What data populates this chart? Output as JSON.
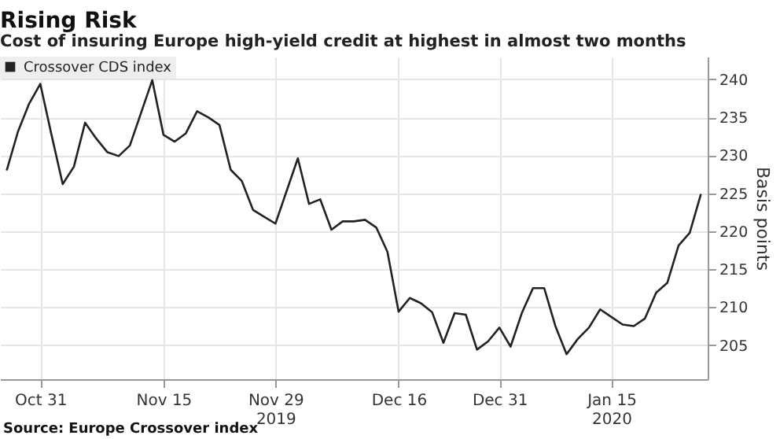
{
  "chart_data": {
    "type": "line",
    "title": "Rising Risk",
    "subtitle": "Cost of insuring Europe high-yield credit at highest in almost two months",
    "ylabel": "Basis points",
    "annotations": [
      "Source: Europe Crossover index"
    ],
    "categories": [
      null,
      null,
      null,
      "Oct 31",
      null,
      null,
      null,
      null,
      null,
      null,
      null,
      null,
      null,
      null,
      "Nov 15",
      null,
      null,
      null,
      null,
      null,
      null,
      null,
      null,
      null,
      "Nov 29\n2019",
      null,
      null,
      null,
      null,
      null,
      null,
      null,
      null,
      null,
      null,
      "Dec 16",
      null,
      null,
      null,
      null,
      null,
      null,
      null,
      null,
      "Dec 31",
      null,
      null,
      null,
      null,
      null,
      null,
      null,
      null,
      null,
      "Jan 15\n2020",
      null,
      null,
      null,
      null,
      null,
      null,
      null,
      null
    ],
    "series": [
      {
        "name": "Crossover CDS index",
        "color": "#222222",
        "values": [
          228.0,
          233.1,
          236.8,
          239.4,
          232.7,
          226.2,
          228.5,
          234.3,
          232.2,
          230.4,
          229.9,
          231.3,
          235.6,
          239.9,
          232.7,
          231.8,
          232.9,
          235.8,
          235.0,
          234.0,
          228.1,
          226.6,
          222.8,
          221.9,
          221.0,
          225.3,
          229.6,
          223.6,
          224.2,
          220.2,
          221.3,
          221.3,
          221.5,
          220.5,
          217.3,
          209.4,
          211.2,
          210.5,
          209.3,
          205.3,
          209.2,
          209.0,
          204.4,
          205.5,
          207.3,
          204.8,
          209.2,
          212.5,
          212.5,
          207.5,
          203.8,
          205.8,
          207.3,
          209.7,
          208.7,
          207.7,
          207.5,
          208.5,
          211.9,
          213.2,
          218.1,
          219.8,
          224.9
        ]
      }
    ],
    "ylim": [
      200.5,
      243
    ],
    "yticks": [
      205,
      210,
      215,
      220,
      225,
      230,
      235,
      240
    ],
    "grid": true,
    "legend": "top left",
    "marker": "none",
    "line_style": "solid"
  }
}
